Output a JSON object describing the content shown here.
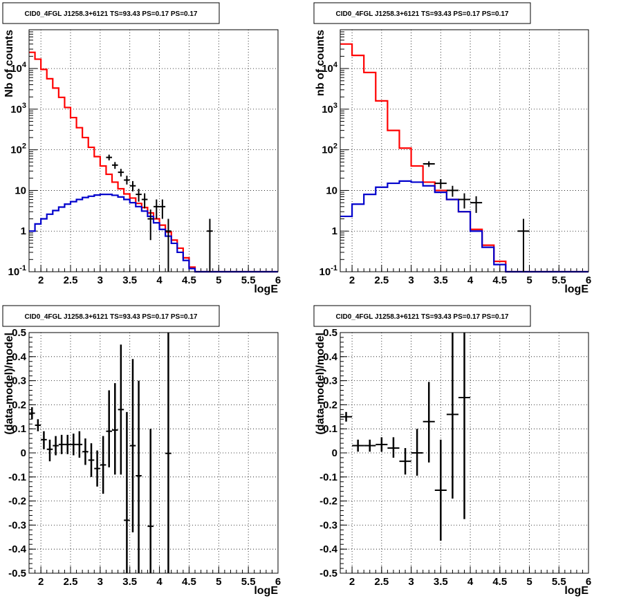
{
  "panel_title": "CID0_4FGL J1258.3+6121 TS=93.43 PS=0.17 PS=0.17",
  "colors": {
    "total_model": "#ff0000",
    "source_model": "#0000cc",
    "data": "#000000",
    "grid": "#000000"
  },
  "chart_data": [
    {
      "type": "line",
      "scale": "log-y",
      "title": "CID0_4FGL J1258.3+6121 TS=93.43 PS=0.17 PS=0.17",
      "xlabel": "logE",
      "ylabel": "Nb of counts",
      "xlim": [
        1.8,
        6.0
      ],
      "ylim": [
        0.1,
        90000
      ],
      "grid": true,
      "xticks": [
        "2",
        "2.5",
        "3",
        "3.5",
        "4",
        "4.5",
        "5",
        "5.5",
        "6"
      ],
      "yticks": [
        "10^-1",
        "1",
        "10",
        "10^2",
        "10^3",
        "10^4"
      ],
      "bin_edges": [
        1.8,
        1.9,
        2.0,
        2.1,
        2.2,
        2.3,
        2.4,
        2.5,
        2.6,
        2.7,
        2.8,
        2.9,
        3.0,
        3.1,
        3.2,
        3.3,
        3.4,
        3.5,
        3.6,
        3.7,
        3.8,
        3.9,
        4.0,
        4.1,
        4.2,
        4.3,
        4.4,
        4.5,
        4.6,
        4.7,
        4.8,
        4.9,
        5.0,
        5.1,
        5.2,
        5.3,
        5.4,
        5.5,
        5.6,
        5.7,
        5.8,
        5.9,
        6.0
      ],
      "series": [
        {
          "role": "total_model",
          "values": [
            25000,
            17000,
            9500,
            5600,
            3300,
            1950,
            1100,
            620,
            350,
            200,
            115,
            68,
            40,
            25,
            16,
            11,
            8.2,
            6.5,
            4.8,
            3.8,
            2.8,
            2.0,
            1.4,
            0.95,
            0.6,
            0.38,
            0.22,
            0.13,
            0.08,
            0.07,
            0.07,
            0.07,
            0.07,
            0.07,
            0.07,
            0.07,
            0.07,
            0.07,
            0.07,
            0.07,
            0.07,
            0.07
          ]
        },
        {
          "role": "source_model",
          "values": [
            1.0,
            1.5,
            2.0,
            2.6,
            3.2,
            3.9,
            4.6,
            5.3,
            6.0,
            6.7,
            7.2,
            7.7,
            8.0,
            8.0,
            7.6,
            6.9,
            6.0,
            5.0,
            4.0,
            3.1,
            2.3,
            1.6,
            1.1,
            0.75,
            0.5,
            0.3,
            0.19,
            0.12,
            0.08,
            0.07,
            0.07,
            0.07,
            0.07,
            0.07,
            0.07,
            0.07,
            0.07,
            0.07,
            0.07,
            0.07,
            0.07,
            0.07
          ]
        },
        {
          "role": "data",
          "points": [
            {
              "x": 3.15,
              "y": 65,
              "lo": 55,
              "hi": 76
            },
            {
              "x": 3.25,
              "y": 42,
              "lo": 34,
              "hi": 50
            },
            {
              "x": 3.35,
              "y": 28,
              "lo": 22,
              "hi": 34
            },
            {
              "x": 3.45,
              "y": 18,
              "lo": 14,
              "hi": 23
            },
            {
              "x": 3.55,
              "y": 13,
              "lo": 9.5,
              "hi": 17
            },
            {
              "x": 3.65,
              "y": 8,
              "lo": 5.3,
              "hi": 11
            },
            {
              "x": 3.75,
              "y": 6,
              "lo": 3.6,
              "hi": 8.5
            },
            {
              "x": 3.85,
              "y": 2,
              "lo": 0.6,
              "hi": 3.4
            },
            {
              "x": 3.95,
              "y": 4,
              "lo": 2.0,
              "hi": 6.0
            },
            {
              "x": 4.05,
              "y": 4,
              "lo": 2.0,
              "hi": 6.0
            },
            {
              "x": 4.15,
              "y": 1,
              "lo": 0.1,
              "hi": 2.0
            },
            {
              "x": 4.85,
              "y": 1,
              "lo": 0.1,
              "hi": 2.0
            }
          ]
        }
      ]
    },
    {
      "type": "line",
      "scale": "log-y",
      "title": "CID0_4FGL J1258.3+6121 TS=93.43 PS=0.17 PS=0.17",
      "xlabel": "logE",
      "ylabel": "nb of counts",
      "xlim": [
        1.8,
        6.0
      ],
      "ylim": [
        0.1,
        90000
      ],
      "grid": true,
      "xticks": [
        "2",
        "2.5",
        "3",
        "3.5",
        "4",
        "4.5",
        "5",
        "5.5",
        "6"
      ],
      "yticks": [
        "10^-1",
        "1",
        "10",
        "10^2",
        "10^3",
        "10^4"
      ],
      "bin_edges": [
        1.8,
        2.0,
        2.2,
        2.4,
        2.6,
        2.8,
        3.0,
        3.2,
        3.4,
        3.6,
        3.8,
        4.0,
        4.2,
        4.4,
        4.6,
        4.8,
        5.0,
        5.2,
        5.4,
        5.6,
        5.8,
        6.0
      ],
      "series": [
        {
          "role": "total_model",
          "values": [
            40000,
            21000,
            8000,
            1600,
            300,
            110,
            40,
            16,
            10,
            6,
            3,
            1.1,
            0.45,
            0.18,
            0.07,
            0.07,
            0.07,
            0.07,
            0.07,
            0.07,
            0.07
          ]
        },
        {
          "role": "source_model",
          "values": [
            2.3,
            4.6,
            8.0,
            12,
            15,
            17,
            16,
            13,
            9,
            6,
            3,
            1.0,
            0.4,
            0.15,
            0.07,
            0.07,
            0.07,
            0.07,
            0.07,
            0.07,
            0.07
          ]
        },
        {
          "role": "data",
          "points": [
            {
              "x": 3.3,
              "y": 45,
              "lo": 38,
              "hi": 52
            },
            {
              "x": 3.5,
              "y": 15,
              "lo": 11,
              "hi": 19
            },
            {
              "x": 3.7,
              "y": 10,
              "lo": 7,
              "hi": 13
            },
            {
              "x": 3.9,
              "y": 6,
              "lo": 3.6,
              "hi": 8.5
            },
            {
              "x": 4.1,
              "y": 5,
              "lo": 2.8,
              "hi": 7.2
            },
            {
              "x": 4.9,
              "y": 1,
              "lo": 0.1,
              "hi": 2.0
            }
          ]
        }
      ]
    },
    {
      "type": "scatter",
      "title": "CID0_4FGL J1258.3+6121 TS=93.43 PS=0.17 PS=0.17",
      "xlabel": "logE",
      "ylabel": "(data-model)/model",
      "xlim": [
        1.8,
        6.0
      ],
      "ylim": [
        -0.5,
        0.5
      ],
      "grid": true,
      "xticks": [
        "2",
        "2.5",
        "3",
        "3.5",
        "4",
        "4.5",
        "5",
        "5.5",
        "6"
      ],
      "yticks": [
        "-0.5",
        "-0.4",
        "-0.3",
        "-0.2",
        "-0.1",
        "0",
        "0.1",
        "0.2",
        "0.3",
        "0.4",
        "0.5"
      ],
      "xhalf": 0.05,
      "points": [
        {
          "x": 1.85,
          "y": 0.165,
          "lo": 0.14,
          "hi": 0.19
        },
        {
          "x": 1.95,
          "y": 0.115,
          "lo": 0.09,
          "hi": 0.14
        },
        {
          "x": 2.05,
          "y": 0.055,
          "lo": 0.015,
          "hi": 0.09
        },
        {
          "x": 2.15,
          "y": 0.015,
          "lo": -0.035,
          "hi": 0.055
        },
        {
          "x": 2.25,
          "y": 0.03,
          "lo": -0.01,
          "hi": 0.07
        },
        {
          "x": 2.35,
          "y": 0.035,
          "lo": -0.005,
          "hi": 0.075
        },
        {
          "x": 2.45,
          "y": 0.035,
          "lo": -0.005,
          "hi": 0.075
        },
        {
          "x": 2.55,
          "y": 0.035,
          "lo": -0.01,
          "hi": 0.08
        },
        {
          "x": 2.65,
          "y": 0.035,
          "lo": -0.02,
          "hi": 0.09
        },
        {
          "x": 2.75,
          "y": 0.005,
          "lo": -0.05,
          "hi": 0.06
        },
        {
          "x": 2.85,
          "y": -0.03,
          "lo": -0.1,
          "hi": 0.04
        },
        {
          "x": 2.95,
          "y": -0.065,
          "lo": -0.14,
          "hi": 0.01
        },
        {
          "x": 3.05,
          "y": -0.05,
          "lo": -0.17,
          "hi": 0.07
        },
        {
          "x": 3.15,
          "y": 0.09,
          "lo": -0.06,
          "hi": 0.26
        },
        {
          "x": 3.25,
          "y": 0.095,
          "lo": -0.09,
          "hi": 0.29
        },
        {
          "x": 3.35,
          "y": 0.18,
          "lo": -0.09,
          "hi": 0.45
        },
        {
          "x": 3.45,
          "y": -0.28,
          "lo": -0.5,
          "hi": 0.17
        },
        {
          "x": 3.55,
          "y": 0.03,
          "lo": -0.33,
          "hi": 0.39
        },
        {
          "x": 3.65,
          "y": -0.095,
          "lo": -0.5,
          "hi": 0.3
        },
        {
          "x": 3.85,
          "y": -0.305,
          "lo": -0.5,
          "hi": 0.1
        },
        {
          "x": 4.15,
          "y": -0.002,
          "lo": -0.5,
          "hi": 0.5
        }
      ]
    },
    {
      "type": "scatter",
      "title": "CID0_4FGL J1258.3+6121 TS=93.43 PS=0.17 PS=0.17",
      "xlabel": "logE",
      "ylabel": "(data-model)/model",
      "xlim": [
        1.8,
        6.0
      ],
      "ylim": [
        -0.5,
        0.5
      ],
      "grid": true,
      "xticks": [
        "2",
        "2.5",
        "3",
        "3.5",
        "4",
        "4.5",
        "5",
        "5.5",
        "6"
      ],
      "yticks": [
        "-0.5",
        "-0.4",
        "-0.3",
        "-0.2",
        "-0.1",
        "0",
        "0.1",
        "0.2",
        "0.3",
        "0.4",
        "0.5"
      ],
      "xhalf": 0.1,
      "points": [
        {
          "x": 1.9,
          "y": 0.15,
          "lo": 0.13,
          "hi": 0.17
        },
        {
          "x": 2.1,
          "y": 0.03,
          "lo": 0.005,
          "hi": 0.055
        },
        {
          "x": 2.3,
          "y": 0.03,
          "lo": 0.005,
          "hi": 0.055
        },
        {
          "x": 2.5,
          "y": 0.035,
          "lo": 0.005,
          "hi": 0.065
        },
        {
          "x": 2.7,
          "y": 0.02,
          "lo": -0.02,
          "hi": 0.065
        },
        {
          "x": 2.9,
          "y": -0.035,
          "lo": -0.09,
          "hi": 0.02
        },
        {
          "x": 3.1,
          "y": 0.0,
          "lo": -0.095,
          "hi": 0.1
        },
        {
          "x": 3.3,
          "y": 0.13,
          "lo": -0.04,
          "hi": 0.295
        },
        {
          "x": 3.5,
          "y": -0.155,
          "lo": -0.365,
          "hi": 0.055
        },
        {
          "x": 3.7,
          "y": 0.16,
          "lo": -0.19,
          "hi": 0.5
        },
        {
          "x": 3.9,
          "y": 0.23,
          "lo": -0.275,
          "hi": 0.5
        }
      ]
    }
  ]
}
